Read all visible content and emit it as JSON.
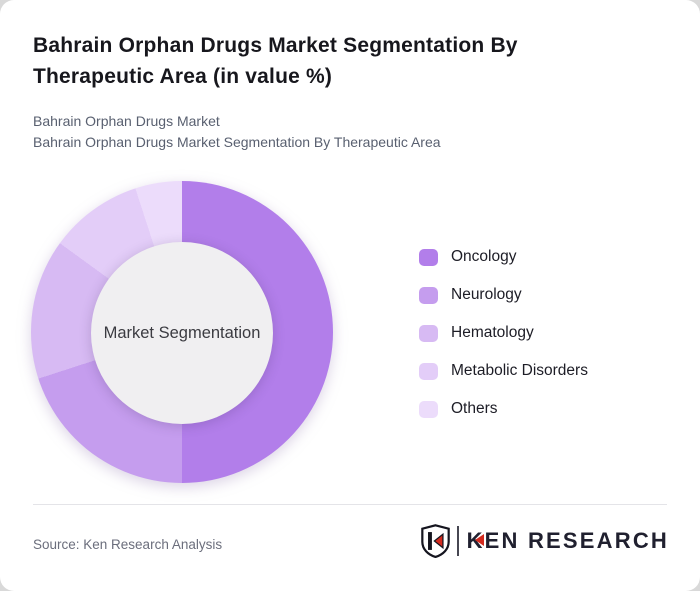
{
  "header": {
    "title": "Bahrain Orphan Drugs Market Segmentation By Therapeutic Area (in value %)",
    "subtitle1": "Bahrain Orphan Drugs Market",
    "subtitle2": "Bahrain Orphan Drugs Market Segmentation By Therapeutic Area"
  },
  "chart_data": {
    "type": "pie",
    "variant": "donut",
    "title": "Bahrain Orphan Drugs Market Segmentation By Therapeutic Area (in value %)",
    "center_label": "Market Segmentation",
    "categories": [
      "Oncology",
      "Neurology",
      "Hematology",
      "Metabolic Disorders",
      "Others"
    ],
    "values": [
      50,
      20,
      15,
      10,
      5
    ],
    "unit": "percent",
    "colors": [
      "#b27eea",
      "#c59dee",
      "#d7baf3",
      "#e3cdf8",
      "#ecdcfb"
    ],
    "donut_hole_color": "#f0eff1",
    "start_angle_deg": 0,
    "direction": "clockwise",
    "legend_position": "right",
    "data_labels_shown": false
  },
  "footer": {
    "source": "Source: Ken Research Analysis",
    "logo_text": "KEN RESEARCH"
  },
  "theme": {
    "logo_red": "#d32a1e",
    "logo_dark": "#20202f",
    "title_color": "#17171d",
    "subtitle_color": "#596070",
    "divider_color": "#e4e4e8"
  }
}
